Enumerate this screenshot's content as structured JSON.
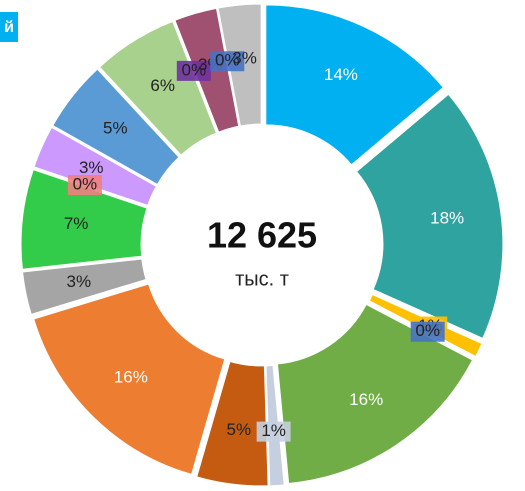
{
  "corner_label": "й",
  "chart_data": {
    "type": "pie",
    "center_value": "12 625",
    "center_unit": "тыс. т",
    "values": [
      14,
      18,
      1,
      0,
      16,
      1,
      5,
      16,
      3,
      7,
      0,
      3,
      5,
      6,
      0,
      3,
      0,
      3
    ],
    "value_labels": [
      "14%",
      "18%",
      "1%",
      "0%",
      "16%",
      "1%",
      "5%",
      "16%",
      "3%",
      "7%",
      "0%",
      "3%",
      "5%",
      "6%",
      "0%",
      "3%",
      "0%",
      "3%"
    ],
    "colors": [
      "#00b0f0",
      "#2fa3a0",
      "#ffc000",
      "#4472c4",
      "#70ad47",
      "#c5cfe0",
      "#c55a11",
      "#ed7d31",
      "#a5a5a5",
      "#33cc4a",
      "#f08080",
      "#cc99ff",
      "#5b9bd5",
      "#a9d18e",
      "#7030a0",
      "#a05070",
      "#4472c4",
      "#bfbfbf"
    ]
  }
}
